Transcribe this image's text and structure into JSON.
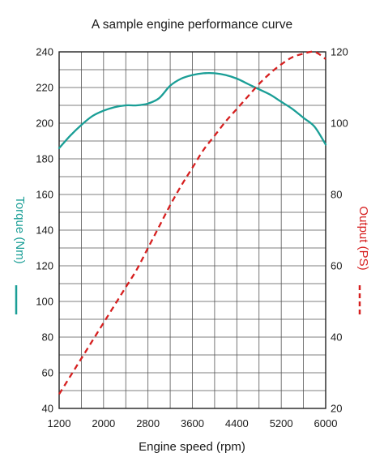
{
  "chart_data": {
    "type": "line",
    "title": "A sample engine performance curve",
    "xlabel": "Engine speed (rpm)",
    "ylabel_left": "Torque (Nm)",
    "ylabel_right": "Output (PS)",
    "xlim": [
      1200,
      6000
    ],
    "ylim_left": [
      40,
      240
    ],
    "ylim_right": [
      20,
      120
    ],
    "x_ticks": [
      "1200",
      "2000",
      "2800",
      "3600",
      "4400",
      "5200",
      "6000"
    ],
    "y_left_ticks": [
      "40",
      "60",
      "80",
      "100",
      "120",
      "140",
      "160",
      "180",
      "200",
      "220",
      "240"
    ],
    "y_right_ticks": [
      "20",
      "40",
      "60",
      "80",
      "100",
      "120"
    ],
    "grid": true,
    "colors": {
      "torque": "#1a9e96",
      "output": "#d61f1f"
    },
    "series": [
      {
        "name": "Torque (Nm)",
        "axis": "left",
        "style": "solid",
        "x": [
          1200,
          1400,
          1600,
          1800,
          2000,
          2200,
          2400,
          2600,
          2800,
          3000,
          3200,
          3400,
          3600,
          3800,
          4000,
          4200,
          4400,
          4600,
          4800,
          5000,
          5200,
          5400,
          5600,
          5800,
          6000
        ],
        "values": [
          186,
          193,
          199,
          204,
          207,
          209,
          210,
          210,
          211,
          214,
          221,
          225,
          227,
          228,
          228,
          227,
          225,
          222,
          219,
          216,
          212,
          208,
          203,
          198,
          188
        ]
      },
      {
        "name": "Output (PS)",
        "axis": "right",
        "style": "dashed",
        "x": [
          1200,
          1400,
          1600,
          1800,
          2000,
          2200,
          2400,
          2600,
          2800,
          3000,
          3200,
          3400,
          3600,
          3800,
          4000,
          4200,
          4400,
          4600,
          4800,
          5000,
          5200,
          5400,
          5600,
          5800,
          6000
        ],
        "values": [
          24,
          29,
          34,
          39,
          44,
          49,
          54,
          59,
          65,
          71,
          77,
          82.5,
          87.5,
          92.5,
          96.5,
          100.5,
          104,
          107.5,
          111,
          114,
          116.5,
          118.5,
          119.5,
          120,
          118
        ]
      }
    ]
  }
}
